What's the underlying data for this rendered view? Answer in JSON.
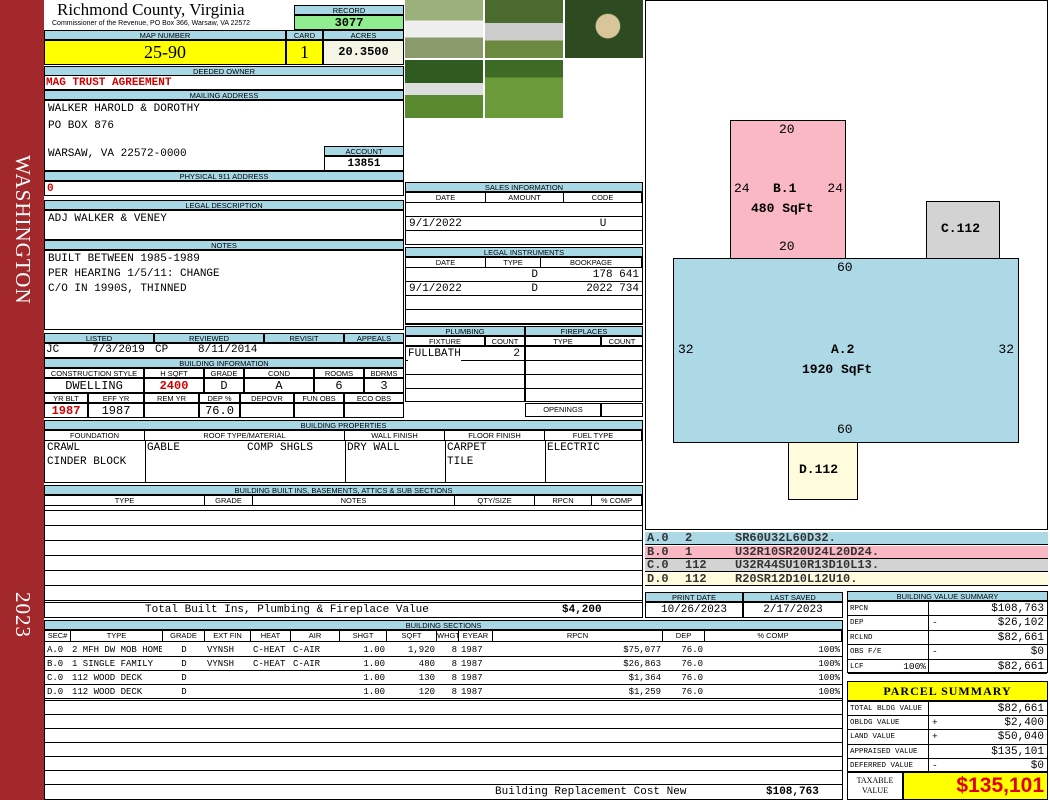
{
  "sidebar": {
    "district": "WASHINGTON",
    "year": "2023"
  },
  "header": {
    "county": "Richmond County, Virginia",
    "subtitle": "Commissioner of the Revenue, PO Box 366, Warsaw, VA 22572",
    "record_label": "RECORD",
    "record": "3077"
  },
  "parcel": {
    "map_label": "MAP NUMBER",
    "map_number": "25-90",
    "card_label": "CARD",
    "card": "1",
    "acres_label": "ACRES",
    "acres": "20.3500"
  },
  "owner": {
    "label": "DEEDED OWNER",
    "value": "MAG TRUST AGREEMENT"
  },
  "mailing": {
    "label": "MAILING ADDRESS",
    "lines": [
      "WALKER HAROLD & DOROTHY",
      "PO BOX 876",
      "WARSAW, VA 22572-0000"
    ],
    "account_label": "ACCOUNT",
    "account": "13851"
  },
  "physical": {
    "label": "PHYSICAL 911 ADDRESS",
    "value": "0"
  },
  "legal": {
    "label": "LEGAL DESCRIPTION",
    "value": "ADJ WALKER & VENEY"
  },
  "notes": {
    "label": "NOTES",
    "lines": [
      "BUILT BETWEEN 1985-1989",
      "PER HEARING 1/5/11: CHANGE",
      "C/O IN 1990S, THINNED"
    ]
  },
  "review": {
    "listed_label": "LISTED",
    "reviewed_label": "REVIEWED",
    "revisit_label": "REVISIT",
    "appeals_label": "APPEALS",
    "listed_by": "JC",
    "listed_date": "7/3/2019",
    "reviewed_by": "CP",
    "reviewed_date": "8/11/2014"
  },
  "bldg_info": {
    "label": "BUILDING INFORMATION",
    "h1": [
      "CONSTRUCTION STYLE",
      "H SQFT",
      "GRADE",
      "COND",
      "ROOMS",
      "BDRMS"
    ],
    "v1": [
      "DWELLING",
      "2400",
      "D",
      "A",
      "6",
      "3"
    ],
    "h2": [
      "YR BLT",
      "EFF YR",
      "REM YR",
      "DEP %",
      "DEPOVR",
      "FUN OBS",
      "ECO OBS"
    ],
    "v2": [
      "1987",
      "1987",
      "",
      "76.0",
      "",
      "",
      ""
    ]
  },
  "sales": {
    "label": "SALES INFORMATION",
    "cols": [
      "DATE",
      "AMOUNT",
      "CODE"
    ],
    "rows": [
      [
        "",
        "",
        ""
      ],
      [
        "9/1/2022",
        "",
        "U"
      ],
      [
        "",
        "",
        ""
      ]
    ]
  },
  "instruments": {
    "label": "LEGAL INSTRUMENTS",
    "cols": [
      "DATE",
      "TYPE",
      "BOOKPAGE"
    ],
    "rows": [
      [
        "",
        "D",
        "178 641"
      ],
      [
        "9/1/2022",
        "D",
        "2022 734"
      ],
      [
        "",
        "",
        ""
      ],
      [
        "",
        "",
        ""
      ]
    ]
  },
  "plumbing": {
    "label": "PLUMBING",
    "cols": [
      "FIXTURE",
      "COUNT"
    ],
    "rows": [
      [
        "FULLBATH",
        "2"
      ]
    ]
  },
  "fireplaces": {
    "label": "FIREPLACES",
    "cols": [
      "TYPE",
      "COUNT"
    ],
    "openings_label": "OPENINGS"
  },
  "properties": {
    "label": "BUILDING PROPERTIES",
    "cols": [
      "FOUNDATION",
      "ROOF TYPE/MATERIAL",
      "WALL FINISH",
      "FLOOR FINISH",
      "FUEL TYPE"
    ],
    "foundation": [
      "CRAWL",
      "CINDER BLOCK"
    ],
    "roof_type": "GABLE",
    "roof_material": "COMP SHGLS",
    "wall": "DRY WALL",
    "floor": [
      "CARPET",
      "TILE"
    ],
    "fuel": "ELECTRIC"
  },
  "builtins": {
    "label": "BUILDING BUILT INS, BASEMENTS, ATTICS & SUB SECTIONS",
    "cols": [
      "TYPE",
      "GRADE",
      "NOTES",
      "QTY/SIZE",
      "RPCN",
      "% COMP"
    ],
    "total_label": "Total Built Ins, Plumbing & Fireplace Value",
    "total": "$4,200"
  },
  "dates": {
    "print_label": "PRINT DATE",
    "print": "10/26/2023",
    "saved_label": "LAST SAVED",
    "saved": "2/17/2023"
  },
  "sections": {
    "label": "BUILDING SECTIONS",
    "cols": [
      "SEC#",
      "TYPE",
      "GRADE",
      "EXT FIN",
      "HEAT",
      "AIR",
      "SHGT",
      "SQFT",
      "WHGT",
      "EYEAR",
      "RPCN",
      "DEP",
      "% COMP"
    ],
    "rows": [
      [
        "A.0",
        "2 MFH DW MOB HOME",
        "D",
        "VYNSH",
        "C-HEAT",
        "C-AIR",
        "1.00",
        "1,920",
        "8",
        "1987",
        "$75,077",
        "76.0",
        "100%"
      ],
      [
        "B.0",
        "1 SINGLE FAMILY",
        "D",
        "VYNSH",
        "C-HEAT",
        "C-AIR",
        "1.00",
        "480",
        "8",
        "1987",
        "$26,863",
        "76.0",
        "100%"
      ],
      [
        "C.0",
        "112 WOOD DECK",
        "D",
        "",
        "",
        "",
        "1.00",
        "130",
        "8",
        "1987",
        "$1,364",
        "76.0",
        "100%"
      ],
      [
        "D.0",
        "112 WOOD DECK",
        "D",
        "",
        "",
        "",
        "1.00",
        "120",
        "8",
        "1987",
        "$1,259",
        "76.0",
        "100%"
      ]
    ],
    "rcn_label": "Building Replacement Cost New",
    "rcn": "$108,763"
  },
  "sketch": {
    "shapes": [
      {
        "id": "B.1",
        "area": "480 SqFt",
        "dims": [
          "20",
          "24",
          "24",
          "20"
        ],
        "color": "#f9b8c4"
      },
      {
        "id": "C.112",
        "color": "#d3d3d3"
      },
      {
        "id": "A.2",
        "area": "1920 SqFt",
        "dims": [
          "60",
          "32",
          "32",
          "60"
        ],
        "color": "#add8e6"
      },
      {
        "id": "D.112",
        "color": "#fffbdc"
      }
    ],
    "legend": [
      {
        "sec": "A.0",
        "code": "2",
        "path": "SR60U32L60D32.",
        "color": "#add8e6"
      },
      {
        "sec": "B.0",
        "code": "1",
        "path": "U32R10SR20U24L20D24.",
        "color": "#f9b8c4"
      },
      {
        "sec": "C.0",
        "code": "112",
        "path": "U32R44SU10R13D10L13.",
        "color": "#d3d3d3"
      },
      {
        "sec": "D.0",
        "code": "112",
        "path": "R20SR12D10L12U10.",
        "color": "#fffbdc"
      }
    ]
  },
  "value_summary": {
    "label": "BUILDING VALUE SUMMARY",
    "rows": [
      [
        "RPCN",
        "",
        "$108,763"
      ],
      [
        "DEP",
        "-",
        "$26,102"
      ],
      [
        "RCLND",
        "",
        "$82,661"
      ],
      [
        "OBS F/E",
        "-",
        "$0"
      ],
      [
        "LCF",
        "100%",
        "$82,661"
      ]
    ]
  },
  "parcel_summary": {
    "label": "PARCEL SUMMARY",
    "rows": [
      [
        "TOTAL BLDG VALUE",
        "",
        "$82,661"
      ],
      [
        "OBLDG VALUE",
        "+",
        "$2,400"
      ],
      [
        "LAND VALUE",
        "+",
        "$50,040"
      ],
      [
        "APPRAISED VALUE",
        "",
        "$135,101"
      ],
      [
        "DEFERRED VALUE",
        "-",
        "$0"
      ]
    ],
    "taxable_label": "TAXABLE VALUE",
    "taxable": "$135,101"
  }
}
